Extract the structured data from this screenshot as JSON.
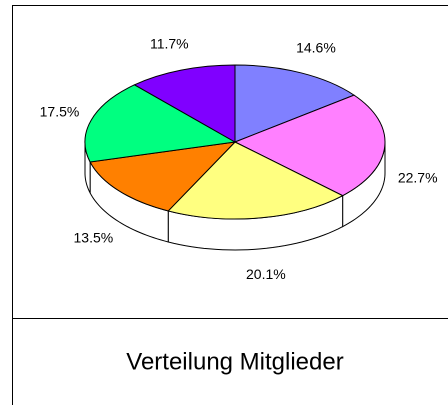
{
  "chart_data": {
    "type": "pie",
    "title": "Verteilung Mitglieder",
    "values": [
      14.6,
      22.7,
      20.1,
      13.5,
      17.5,
      11.7
    ],
    "value_labels": [
      "14.6%",
      "22.7%",
      "20.1%",
      "13.5%",
      "17.5%",
      "11.7%"
    ],
    "colors": [
      "#8080ff",
      "#ff80ff",
      "#ffff80",
      "#ff8000",
      "#00ff80",
      "#8000ff"
    ]
  }
}
